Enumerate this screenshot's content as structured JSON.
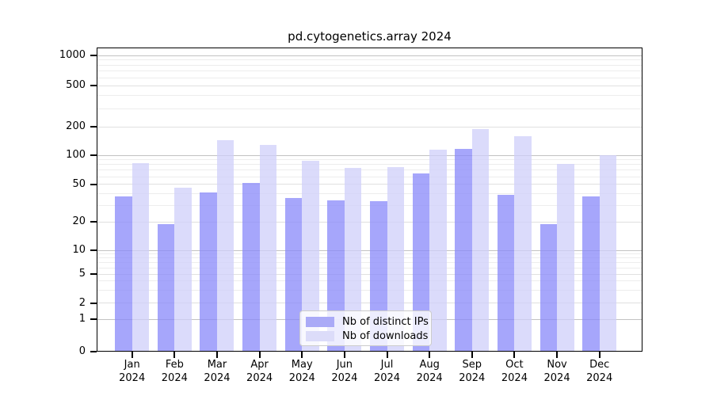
{
  "chart_data": {
    "type": "bar",
    "title": "pd.cytogenetics.array 2024",
    "categories": [
      "Jan 2024",
      "Feb 2024",
      "Mar 2024",
      "Apr 2024",
      "May 2024",
      "Jun 2024",
      "Jul 2024",
      "Aug 2024",
      "Sep 2024",
      "Oct 2024",
      "Nov 2024",
      "Dec 2024"
    ],
    "series": [
      {
        "name": "Nb of distinct IPs",
        "values": [
          37,
          19,
          41,
          52,
          36,
          34,
          33,
          65,
          117,
          39,
          19,
          37
        ]
      },
      {
        "name": "Nb of downloads",
        "values": [
          83,
          46,
          145,
          128,
          87,
          74,
          76,
          115,
          190,
          159,
          81,
          100
        ]
      }
    ],
    "yscale": "symlog",
    "yticks": [
      0,
      1,
      2,
      5,
      10,
      20,
      50,
      100,
      200,
      500,
      1000
    ],
    "ylim": [
      0,
      1100
    ],
    "xlabel": "",
    "ylabel": "",
    "grid": true,
    "legend_position": "lower center"
  },
  "colors": {
    "ips_bar_fill": "rgba(138,138,250,0.76)",
    "downloads_bar_fill": "rgba(208,208,250,0.76)",
    "ips_swatch": "#aaaaf7",
    "downloads_swatch": "#dcdcf9",
    "grid_decade": "#c2c2c2",
    "grid_minor": "#ededed"
  }
}
